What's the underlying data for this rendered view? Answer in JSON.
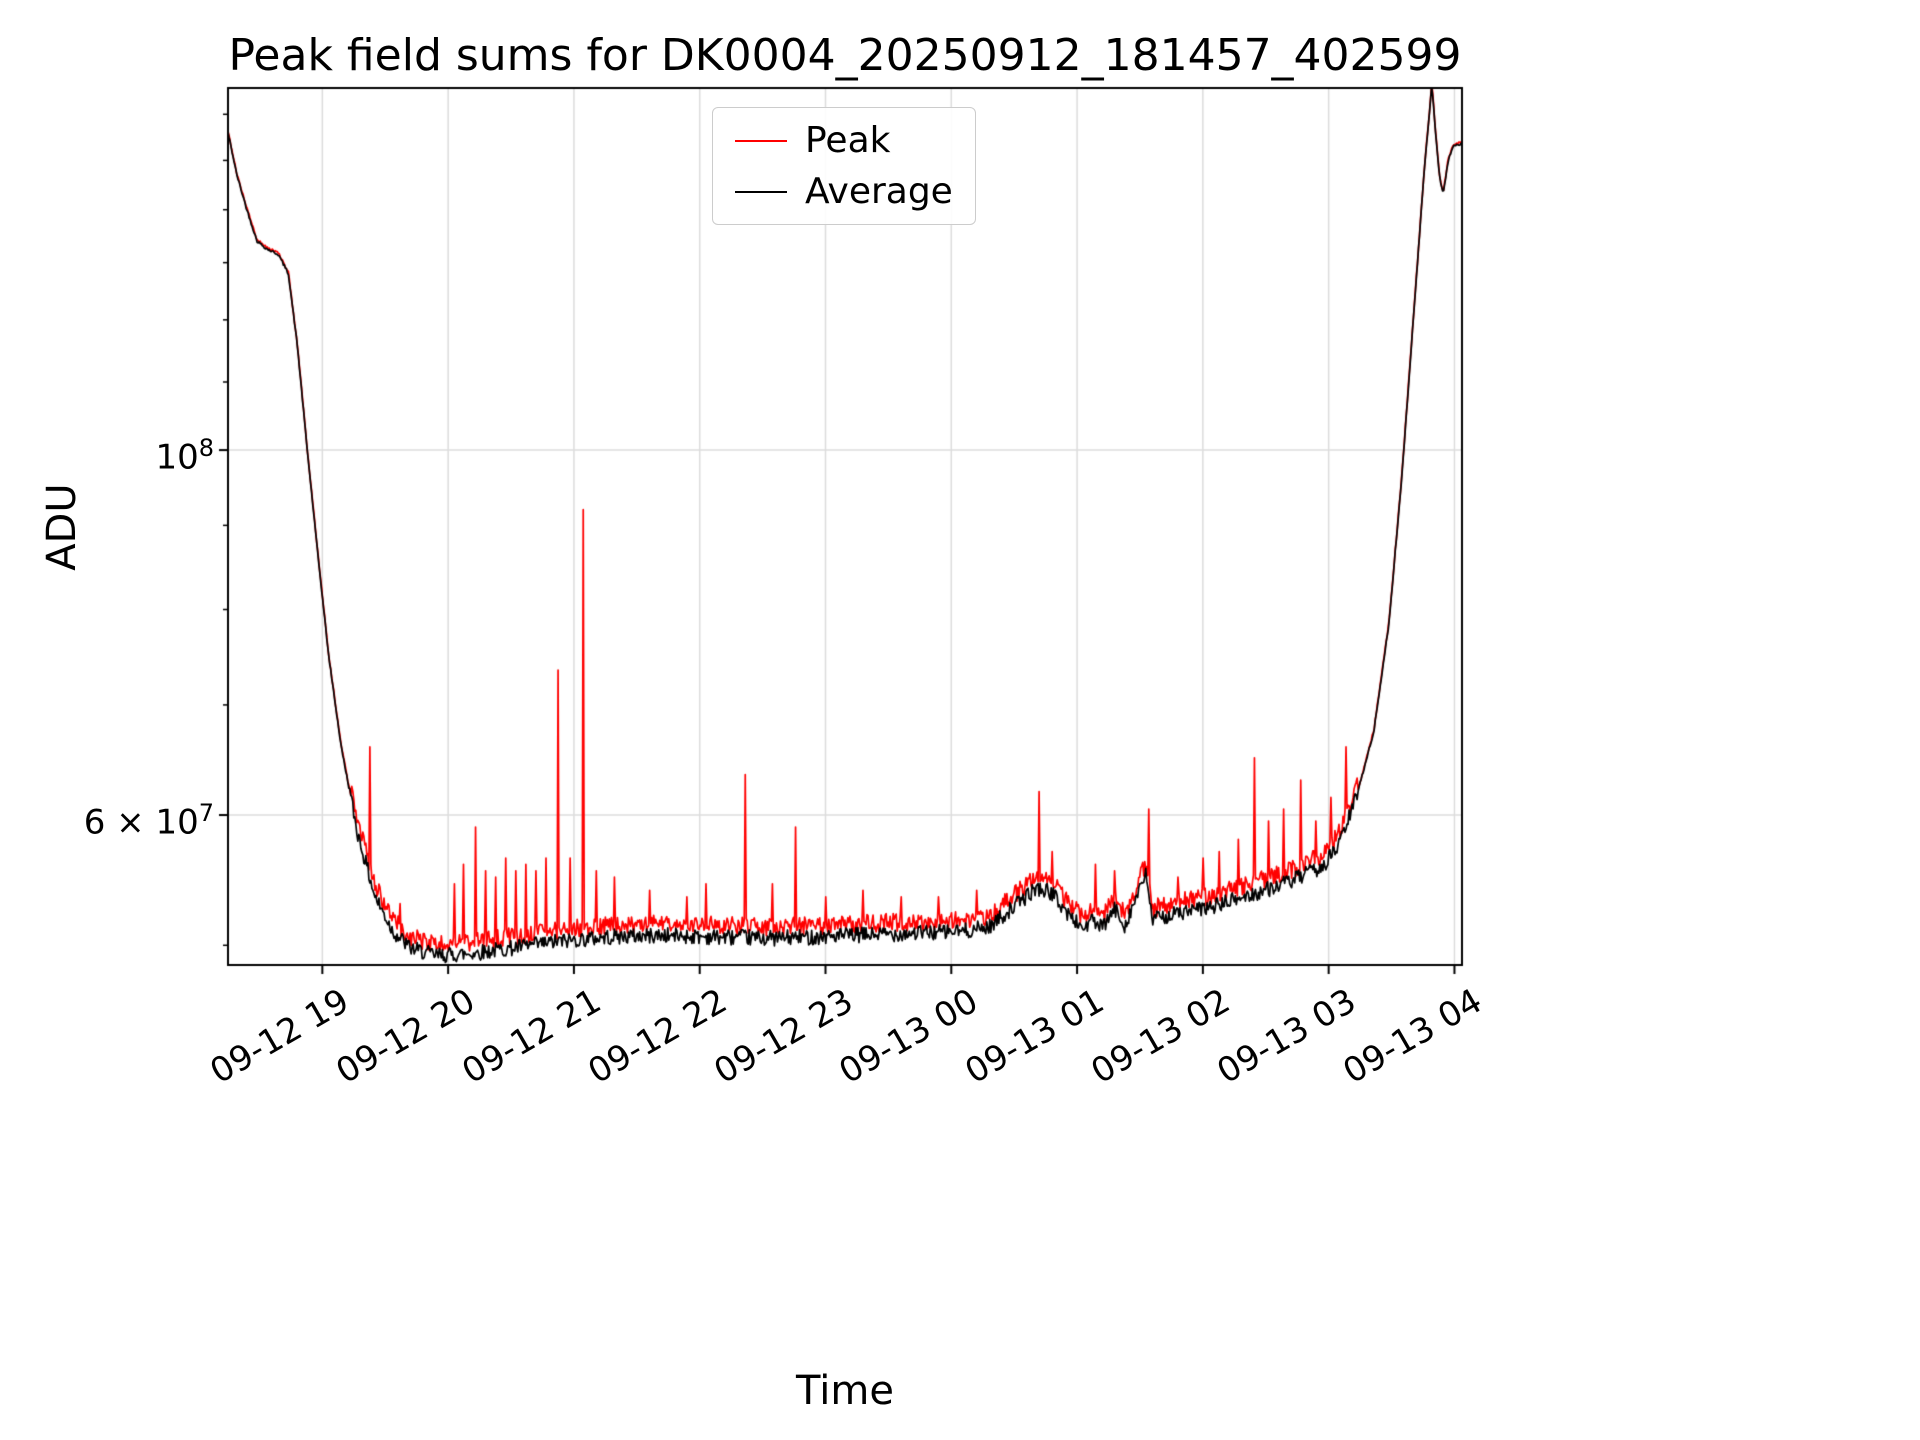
{
  "chart_data": {
    "type": "line",
    "title": "Peak field sums for DK0004_20250912_181457_402599",
    "xlabel": "Time",
    "ylabel": "ADU",
    "y_scale": "log",
    "grid": true,
    "legend_position": "upper center-left inside axes",
    "x_axis": {
      "start_hour": 18.25,
      "end_hour": 28.06,
      "tick_hours": [
        19,
        20,
        21,
        22,
        23,
        24,
        25,
        26,
        27,
        28
      ],
      "tick_labels": [
        "09-12 19",
        "09-12 20",
        "09-12 21",
        "09-12 22",
        "09-12 23",
        "09-13 00",
        "09-13 01",
        "09-13 02",
        "09-13 03",
        "09-13 04"
      ]
    },
    "y_axis": {
      "min": 48640000.0,
      "max": 166000000.0,
      "major_ticks": [
        {
          "value": 60000000.0,
          "base": "6 × 10",
          "exp": "7"
        },
        {
          "value": 100000000.0,
          "base": "10",
          "exp": "8"
        }
      ],
      "minor_ticks": [
        50000000.0,
        70000000.0,
        80000000.0,
        90000000.0,
        110000000.0,
        120000000.0,
        130000000.0,
        140000000.0,
        150000000.0,
        160000000.0
      ]
    },
    "legend": [
      {
        "label": "Peak",
        "color": "#ff0000"
      },
      {
        "label": "Average",
        "color": "#000000"
      }
    ],
    "series": [
      {
        "name": "Average",
        "color": "#000000",
        "noise": {
          "flat": 0.011,
          "steep": 0.002
        },
        "keypoints": [
          [
            18.25,
            156000000.0
          ],
          [
            18.32,
            147000000.0
          ],
          [
            18.4,
            140000000.0
          ],
          [
            18.48,
            134000000.0
          ],
          [
            18.56,
            132500000.0
          ],
          [
            18.65,
            131500000.0
          ],
          [
            18.73,
            128000000.0
          ],
          [
            18.8,
            116000000.0
          ],
          [
            18.88,
            100000000.0
          ],
          [
            18.96,
            87000000.0
          ],
          [
            19.05,
            75000000.0
          ],
          [
            19.15,
            66000000.0
          ],
          [
            19.28,
            58500000.0
          ],
          [
            19.42,
            53500000.0
          ],
          [
            19.56,
            51000000.0
          ],
          [
            19.7,
            49800000.0
          ],
          [
            19.9,
            49300000.0
          ],
          [
            20.15,
            49400000.0
          ],
          [
            20.5,
            49800000.0
          ],
          [
            20.9,
            50300000.0
          ],
          [
            21.3,
            50600000.0
          ],
          [
            21.7,
            50700000.0
          ],
          [
            22.1,
            50600000.0
          ],
          [
            22.6,
            50500000.0
          ],
          [
            23.2,
            50700000.0
          ],
          [
            23.8,
            50900000.0
          ],
          [
            24.1,
            51000000.0
          ],
          [
            24.3,
            51300000.0
          ],
          [
            24.5,
            52800000.0
          ],
          [
            24.68,
            54200000.0
          ],
          [
            24.8,
            53800000.0
          ],
          [
            24.93,
            52200000.0
          ],
          [
            25.05,
            51200000.0
          ],
          [
            25.12,
            51800000.0
          ],
          [
            25.2,
            51200000.0
          ],
          [
            25.3,
            52600000.0
          ],
          [
            25.38,
            51400000.0
          ],
          [
            25.45,
            53000000.0
          ],
          [
            25.55,
            55200000.0
          ],
          [
            25.6,
            51800000.0
          ],
          [
            25.75,
            52200000.0
          ],
          [
            26.05,
            52700000.0
          ],
          [
            26.4,
            53700000.0
          ],
          [
            26.7,
            54700000.0
          ],
          [
            26.95,
            55800000.0
          ],
          [
            27.08,
            57500000.0
          ],
          [
            27.22,
            61500000.0
          ],
          [
            27.36,
            67500000.0
          ],
          [
            27.48,
            78500000.0
          ],
          [
            27.58,
            96000000.0
          ],
          [
            27.68,
            122000000.0
          ],
          [
            27.76,
            148000000.0
          ],
          [
            27.8,
            160000000.0
          ],
          [
            27.82,
            167000000.0
          ],
          [
            27.85,
            156000000.0
          ],
          [
            27.88,
            147000000.0
          ],
          [
            27.91,
            143000000.0
          ],
          [
            27.95,
            150000000.0
          ],
          [
            27.99,
            153000000.0
          ],
          [
            28.06,
            153500000.0
          ]
        ]
      },
      {
        "name": "Peak",
        "color": "#ff0000",
        "baseline_offset": {
          "flat": 0.016,
          "steep": 0.002
        },
        "noise": {
          "flat": 0.013,
          "steep": 0.002
        },
        "spikes": [
          [
            19.38,
            66000000.0
          ],
          [
            19.62,
            53000000.0
          ],
          [
            20.05,
            54500000.0
          ],
          [
            20.12,
            56000000.0
          ],
          [
            20.22,
            59000000.0
          ],
          [
            20.3,
            55500000.0
          ],
          [
            20.38,
            55000000.0
          ],
          [
            20.46,
            56500000.0
          ],
          [
            20.54,
            55500000.0
          ],
          [
            20.62,
            56000000.0
          ],
          [
            20.7,
            55500000.0
          ],
          [
            20.78,
            56500000.0
          ],
          [
            20.87,
            73500000.0
          ],
          [
            20.97,
            56500000.0
          ],
          [
            21.07,
            92000000.0
          ],
          [
            21.18,
            55500000.0
          ],
          [
            21.32,
            55000000.0
          ],
          [
            21.6,
            54000000.0
          ],
          [
            21.9,
            53500000.0
          ],
          [
            22.05,
            54500000.0
          ],
          [
            22.36,
            63500000.0
          ],
          [
            22.58,
            54500000.0
          ],
          [
            22.76,
            59000000.0
          ],
          [
            23.0,
            53500000.0
          ],
          [
            23.3,
            54000000.0
          ],
          [
            23.6,
            53500000.0
          ],
          [
            23.9,
            53500000.0
          ],
          [
            24.2,
            54000000.0
          ],
          [
            24.7,
            62000000.0
          ],
          [
            24.8,
            57000000.0
          ],
          [
            25.15,
            56000000.0
          ],
          [
            25.3,
            55500000.0
          ],
          [
            25.57,
            60500000.0
          ],
          [
            25.8,
            55000000.0
          ],
          [
            26.0,
            56500000.0
          ],
          [
            26.13,
            57000000.0
          ],
          [
            26.28,
            58000000.0
          ],
          [
            26.41,
            65000000.0
          ],
          [
            26.52,
            59500000.0
          ],
          [
            26.64,
            60500000.0
          ],
          [
            26.78,
            63000000.0
          ],
          [
            26.9,
            59500000.0
          ],
          [
            27.02,
            61500000.0
          ],
          [
            27.14,
            66000000.0
          ]
        ]
      }
    ],
    "sampling": {
      "dt": 0.008,
      "seed": 42,
      "flat_threshold": 62000000.0
    },
    "colors": {
      "grid": "#dcdcdc",
      "spine": "#000000",
      "background": "#ffffff"
    }
  }
}
